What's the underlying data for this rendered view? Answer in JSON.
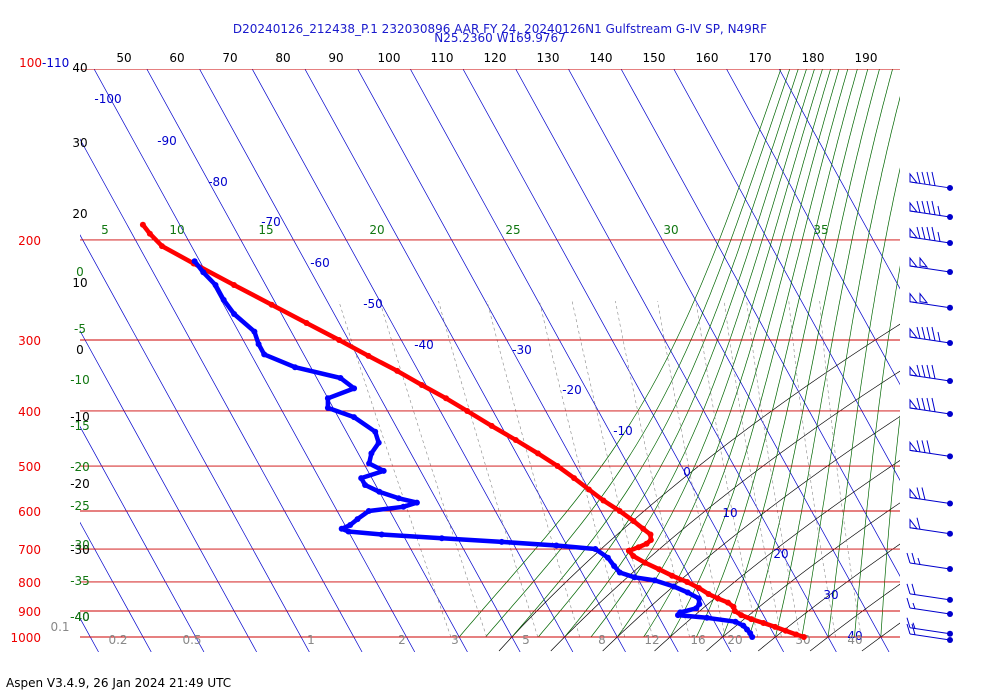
{
  "header": {
    "line1": "D20240126_212438_P.1 232030896 AAR FY 24, 20240126N1 Gulfstream G-IV SP, N49RF",
    "line2": "N25.2360 W169.9767"
  },
  "footer": {
    "text": "Aspen V3.4.9, 26 Jan 2024  21:49 UTC"
  },
  "colors": {
    "temperature": "#ff0000",
    "dewpoint": "#0000ff",
    "isobar": "#cc0000",
    "isotherm": "#0000cc",
    "dry_adiabat": "#000000",
    "moist_adiabat": "#006600",
    "mixing_ratio": "#888888",
    "title": "#1a1acc"
  },
  "chart_data": {
    "type": "line",
    "subtype": "skew-T log-P sounding",
    "y_scale": "log",
    "ylim": [
      1000,
      100
    ],
    "pressure_labels": [
      {
        "p": 1000,
        "label": "1000"
      },
      {
        "p": 900,
        "label": "900"
      },
      {
        "p": 800,
        "label": "800"
      },
      {
        "p": 700,
        "label": "700"
      },
      {
        "p": 600,
        "label": "600"
      },
      {
        "p": 500,
        "label": "500"
      },
      {
        "p": 400,
        "label": "400"
      },
      {
        "p": 300,
        "label": "300"
      },
      {
        "p": 200,
        "label": "200"
      },
      {
        "p": 100,
        "label": "100"
      }
    ],
    "top_pressure_suffix": "-110",
    "altitude_labels": [
      "40",
      "30",
      "20",
      "10",
      "0",
      "-10",
      "-20",
      "-30",
      "-40"
    ],
    "top_axis_labels": [
      "50",
      "60",
      "70",
      "80",
      "90",
      "100",
      "110",
      "120",
      "130",
      "140",
      "150",
      "160",
      "170",
      "180",
      "190"
    ],
    "isotherm_labels": [
      "-100",
      "-90",
      "-80",
      "-70",
      "-60",
      "-50",
      "-40",
      "-30",
      "-20",
      "-10",
      "0",
      "10",
      "20",
      "30",
      "40"
    ],
    "theta_e_labels_top": [
      "5",
      "10",
      "15",
      "20",
      "25",
      "30",
      "35"
    ],
    "theta_e_labels_left": [
      "0",
      "-5",
      "-10",
      "-15",
      "-20",
      "-25",
      "-30",
      "-35",
      "-40"
    ],
    "mixing_ratio_labels": [
      "0.1",
      "0.2",
      "0.5",
      "1",
      "2",
      "3",
      "5",
      "8",
      "12",
      "16",
      "20",
      "30",
      "40"
    ],
    "series": [
      {
        "name": "temperature",
        "points": [
          {
            "p": 1000,
            "t": 25.4
          },
          {
            "p": 990,
            "t": 24.2
          },
          {
            "p": 975,
            "t": 22.6
          },
          {
            "p": 960,
            "t": 21.0
          },
          {
            "p": 945,
            "t": 19.2
          },
          {
            "p": 930,
            "t": 17.3
          },
          {
            "p": 915,
            "t": 15.8
          },
          {
            "p": 900,
            "t": 15.0
          },
          {
            "p": 885,
            "t": 15.2
          },
          {
            "p": 870,
            "t": 14.6
          },
          {
            "p": 855,
            "t": 13.1
          },
          {
            "p": 840,
            "t": 11.8
          },
          {
            "p": 820,
            "t": 10.6
          },
          {
            "p": 800,
            "t": 9.0
          },
          {
            "p": 780,
            "t": 6.8
          },
          {
            "p": 760,
            "t": 5.0
          },
          {
            "p": 740,
            "t": 3.0
          },
          {
            "p": 720,
            "t": 1.5
          },
          {
            "p": 705,
            "t": 1.2
          },
          {
            "p": 695,
            "t": 3.4
          },
          {
            "p": 685,
            "t": 5.3
          },
          {
            "p": 675,
            "t": 6.5
          },
          {
            "p": 660,
            "t": 7.0
          },
          {
            "p": 645,
            "t": 6.2
          },
          {
            "p": 625,
            "t": 5.2
          },
          {
            "p": 600,
            "t": 3.6
          },
          {
            "p": 575,
            "t": 1.6
          },
          {
            "p": 550,
            "t": 0.0
          },
          {
            "p": 525,
            "t": -1.6
          },
          {
            "p": 500,
            "t": -3.5
          },
          {
            "p": 475,
            "t": -5.9
          },
          {
            "p": 450,
            "t": -8.7
          },
          {
            "p": 425,
            "t": -11.8
          },
          {
            "p": 400,
            "t": -14.9
          },
          {
            "p": 380,
            "t": -17.6
          },
          {
            "p": 360,
            "t": -20.8
          },
          {
            "p": 340,
            "t": -24.0
          },
          {
            "p": 320,
            "t": -27.9
          },
          {
            "p": 300,
            "t": -31.8
          },
          {
            "p": 280,
            "t": -36.2
          },
          {
            "p": 260,
            "t": -40.9
          },
          {
            "p": 240,
            "t": -46.0
          },
          {
            "p": 220,
            "t": -51.4
          },
          {
            "p": 205,
            "t": -55.6
          },
          {
            "p": 195,
            "t": -56.6
          },
          {
            "p": 188,
            "t": -57.0
          }
        ]
      },
      {
        "name": "dewpoint",
        "points": [
          {
            "p": 1000,
            "t": 15.6
          },
          {
            "p": 985,
            "t": 15.6
          },
          {
            "p": 970,
            "t": 15.4
          },
          {
            "p": 955,
            "t": 15.1
          },
          {
            "p": 940,
            "t": 14.0
          },
          {
            "p": 925,
            "t": 9.0
          },
          {
            "p": 915,
            "t": 3.8
          },
          {
            "p": 905,
            "t": 4.5
          },
          {
            "p": 890,
            "t": 8.0
          },
          {
            "p": 875,
            "t": 9.0
          },
          {
            "p": 855,
            "t": 9.5
          },
          {
            "p": 835,
            "t": 8.0
          },
          {
            "p": 815,
            "t": 6.0
          },
          {
            "p": 795,
            "t": 3.0
          },
          {
            "p": 785,
            "t": -0.5
          },
          {
            "p": 770,
            "t": -2.8
          },
          {
            "p": 750,
            "t": -3.2
          },
          {
            "p": 725,
            "t": -3.5
          },
          {
            "p": 700,
            "t": -5.0
          },
          {
            "p": 690,
            "t": -12.0
          },
          {
            "p": 680,
            "t": -22.0
          },
          {
            "p": 670,
            "t": -33.0
          },
          {
            "p": 660,
            "t": -44.0
          },
          {
            "p": 652,
            "t": -50.0
          },
          {
            "p": 645,
            "t": -51.0
          },
          {
            "p": 635,
            "t": -49.0
          },
          {
            "p": 620,
            "t": -47.0
          },
          {
            "p": 600,
            "t": -44.0
          },
          {
            "p": 590,
            "t": -37.0
          },
          {
            "p": 580,
            "t": -34.0
          },
          {
            "p": 570,
            "t": -37.0
          },
          {
            "p": 555,
            "t": -40.0
          },
          {
            "p": 540,
            "t": -42.0
          },
          {
            "p": 525,
            "t": -42.0
          },
          {
            "p": 510,
            "t": -37.0
          },
          {
            "p": 495,
            "t": -39.0
          },
          {
            "p": 475,
            "t": -37.5
          },
          {
            "p": 455,
            "t": -35.0
          },
          {
            "p": 435,
            "t": -34.5
          },
          {
            "p": 410,
            "t": -37.0
          },
          {
            "p": 395,
            "t": -41.0
          },
          {
            "p": 380,
            "t": -40.0
          },
          {
            "p": 365,
            "t": -34.0
          },
          {
            "p": 350,
            "t": -35.5
          },
          {
            "p": 335,
            "t": -43.0
          },
          {
            "p": 318,
            "t": -47.5
          },
          {
            "p": 305,
            "t": -47.5
          },
          {
            "p": 290,
            "t": -47.0
          },
          {
            "p": 270,
            "t": -49.0
          },
          {
            "p": 255,
            "t": -49.5
          },
          {
            "p": 240,
            "t": -49.5
          },
          {
            "p": 228,
            "t": -50.5
          },
          {
            "p": 218,
            "t": -51.0
          }
        ]
      }
    ],
    "wind_barbs": [
      {
        "p": 1000,
        "speed_kt": 20
      },
      {
        "p": 975,
        "speed_kt": 15
      },
      {
        "p": 900,
        "speed_kt": 15
      },
      {
        "p": 850,
        "speed_kt": 20
      },
      {
        "p": 750,
        "speed_kt": 25
      },
      {
        "p": 650,
        "speed_kt": 60
      },
      {
        "p": 575,
        "speed_kt": 70
      },
      {
        "p": 475,
        "speed_kt": 80
      },
      {
        "p": 400,
        "speed_kt": 90
      },
      {
        "p": 350,
        "speed_kt": 90
      },
      {
        "p": 300,
        "speed_kt": 95
      },
      {
        "p": 260,
        "speed_kt": 100
      },
      {
        "p": 225,
        "speed_kt": 100
      },
      {
        "p": 200,
        "speed_kt": 95
      },
      {
        "p": 180,
        "speed_kt": 95
      },
      {
        "p": 160,
        "speed_kt": 90
      }
    ]
  }
}
